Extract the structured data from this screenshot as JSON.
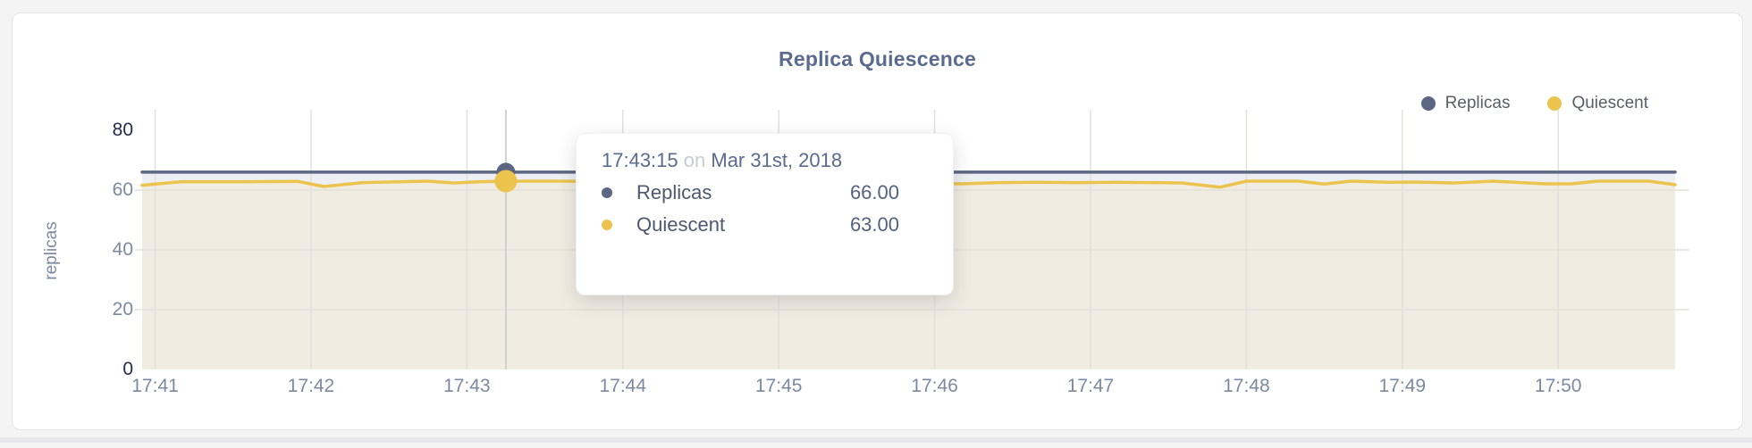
{
  "card": {
    "title": "Replica Quiescence"
  },
  "legend": {
    "items": [
      {
        "label": "Replicas",
        "color": "#5b6782"
      },
      {
        "label": "Quiescent",
        "color": "#ecc34d"
      }
    ]
  },
  "axes": {
    "y_label": "replicas",
    "y_ticks": [
      "0",
      "20",
      "40",
      "60",
      "80"
    ],
    "x_ticks": [
      "17:41",
      "17:42",
      "17:43",
      "17:44",
      "17:45",
      "17:46",
      "17:47",
      "17:48",
      "17:49",
      "17:50"
    ]
  },
  "tooltip": {
    "time": "17:43:15",
    "on_word": "on",
    "date": "Mar 31st, 2018",
    "rows": [
      {
        "label": "Replicas",
        "value": "66.00",
        "color": "#5b6782"
      },
      {
        "label": "Quiescent",
        "value": "63.00",
        "color": "#ecc34d"
      }
    ]
  },
  "colors": {
    "replicas_line": "#5b6782",
    "replicas_fill": "#edeff4",
    "quiescent_line": "#ecc34d",
    "quiescent_fill": "#f0ece1",
    "grid": "#e2e0d9",
    "hover_line": "#d2d2d2",
    "title_text": "#5a6b8e"
  },
  "chart_data": {
    "type": "area",
    "title": "Replica Quiescence",
    "xlabel": "",
    "ylabel": "replicas",
    "ylim": [
      0,
      80
    ],
    "x_range": [
      "17:40:55",
      "17:50:45"
    ],
    "grid": true,
    "legend_position": "top-right",
    "selected_point": {
      "time": "17:43:15",
      "date": "Mar 31st, 2018",
      "Replicas": 66.0,
      "Quiescent": 63.0
    },
    "series": [
      {
        "name": "Replicas",
        "color": "#5b6782",
        "fill": "#edeff4",
        "points": [
          [
            "17:40:55",
            66
          ],
          [
            "17:50:45",
            66
          ]
        ]
      },
      {
        "name": "Quiescent",
        "color": "#ecc34d",
        "fill": "#f0ece1",
        "points": [
          [
            "17:40:55",
            61.6
          ],
          [
            "17:41:10",
            62.8
          ],
          [
            "17:41:35",
            62.8
          ],
          [
            "17:41:55",
            62.9
          ],
          [
            "17:42:05",
            61.2
          ],
          [
            "17:42:20",
            62.5
          ],
          [
            "17:42:35",
            62.8
          ],
          [
            "17:42:45",
            63.0
          ],
          [
            "17:42:55",
            62.4
          ],
          [
            "17:43:05",
            62.8
          ],
          [
            "17:43:15",
            63.0
          ],
          [
            "17:43:40",
            63.0
          ],
          [
            "17:43:50",
            62.6
          ],
          [
            "17:44:05",
            62.8
          ],
          [
            "17:44:20",
            62.3
          ],
          [
            "17:44:30",
            62.6
          ],
          [
            "17:44:45",
            62.4
          ],
          [
            "17:45:00",
            62.7
          ],
          [
            "17:45:10",
            62.1
          ],
          [
            "17:45:20",
            62.7
          ],
          [
            "17:45:30",
            62.5
          ],
          [
            "17:45:45",
            62.8
          ],
          [
            "17:46:00",
            62.3
          ],
          [
            "17:46:10",
            62.1
          ],
          [
            "17:46:25",
            62.5
          ],
          [
            "17:46:40",
            62.6
          ],
          [
            "17:46:55",
            62.5
          ],
          [
            "17:47:10",
            62.6
          ],
          [
            "17:47:25",
            62.5
          ],
          [
            "17:47:35",
            62.4
          ],
          [
            "17:47:50",
            61.0
          ],
          [
            "17:48:00",
            63.0
          ],
          [
            "17:48:20",
            63.0
          ],
          [
            "17:48:30",
            62.0
          ],
          [
            "17:48:40",
            63.0
          ],
          [
            "17:48:55",
            62.6
          ],
          [
            "17:49:05",
            62.7
          ],
          [
            "17:49:20",
            62.4
          ],
          [
            "17:49:35",
            63.0
          ],
          [
            "17:49:55",
            62.1
          ],
          [
            "17:50:05",
            62.1
          ],
          [
            "17:50:15",
            63.0
          ],
          [
            "17:50:35",
            63.0
          ],
          [
            "17:50:45",
            61.8
          ]
        ]
      }
    ]
  }
}
